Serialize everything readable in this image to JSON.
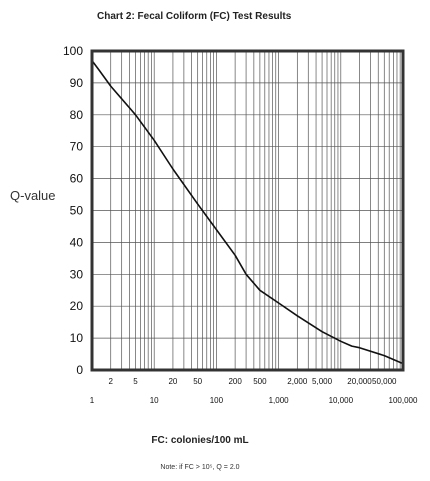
{
  "chart_data": {
    "type": "line",
    "title": "Chart 2: Fecal Coliform (FC) Test Results",
    "xlabel": "FC: colonies/100 mL",
    "ylabel": "Q-value",
    "note": "Note: if FC > 10⁵, Q = 2.0",
    "x_scale": "log",
    "xlim": [
      1,
      100000
    ],
    "ylim": [
      0,
      100
    ],
    "grid": true,
    "y_ticks": [
      "100",
      "90",
      "80",
      "70",
      "60",
      "50",
      "40",
      "30",
      "20",
      "10",
      "0"
    ],
    "y_tick_values": [
      100,
      90,
      80,
      70,
      60,
      50,
      40,
      30,
      20,
      10,
      0
    ],
    "x_major_ticks": [
      {
        "label": "1",
        "value": 1
      },
      {
        "label": "10",
        "value": 10
      },
      {
        "label": "100",
        "value": 100
      },
      {
        "label": "1,000",
        "value": 1000
      },
      {
        "label": "10,000",
        "value": 10000
      },
      {
        "label": "100,000",
        "value": 100000
      }
    ],
    "x_minor_ticks": [
      {
        "label": "2",
        "value": 2
      },
      {
        "label": "5",
        "value": 5
      },
      {
        "label": "20",
        "value": 20
      },
      {
        "label": "50",
        "value": 50
      },
      {
        "label": "200",
        "value": 200
      },
      {
        "label": "500",
        "value": 500
      },
      {
        "label": "2,000",
        "value": 2000
      },
      {
        "label": "5,000",
        "value": 5000
      },
      {
        "label": "20,000",
        "value": 20000
      },
      {
        "label": "50,000",
        "value": 50000
      }
    ],
    "series": [
      {
        "values": [
          {
            "x": 1,
            "y": 97
          },
          {
            "x": 1.3,
            "y": 94
          },
          {
            "x": 2,
            "y": 89
          },
          {
            "x": 5,
            "y": 80
          },
          {
            "x": 10,
            "y": 72
          },
          {
            "x": 20,
            "y": 63
          },
          {
            "x": 50,
            "y": 52
          },
          {
            "x": 100,
            "y": 44
          },
          {
            "x": 200,
            "y": 36
          },
          {
            "x": 300,
            "y": 30
          },
          {
            "x": 500,
            "y": 25
          },
          {
            "x": 1000,
            "y": 21
          },
          {
            "x": 2000,
            "y": 17
          },
          {
            "x": 5000,
            "y": 12
          },
          {
            "x": 10000,
            "y": 9
          },
          {
            "x": 15000,
            "y": 7.5
          },
          {
            "x": 20000,
            "y": 7
          },
          {
            "x": 50000,
            "y": 4.5
          },
          {
            "x": 100000,
            "y": 2
          }
        ]
      }
    ]
  }
}
